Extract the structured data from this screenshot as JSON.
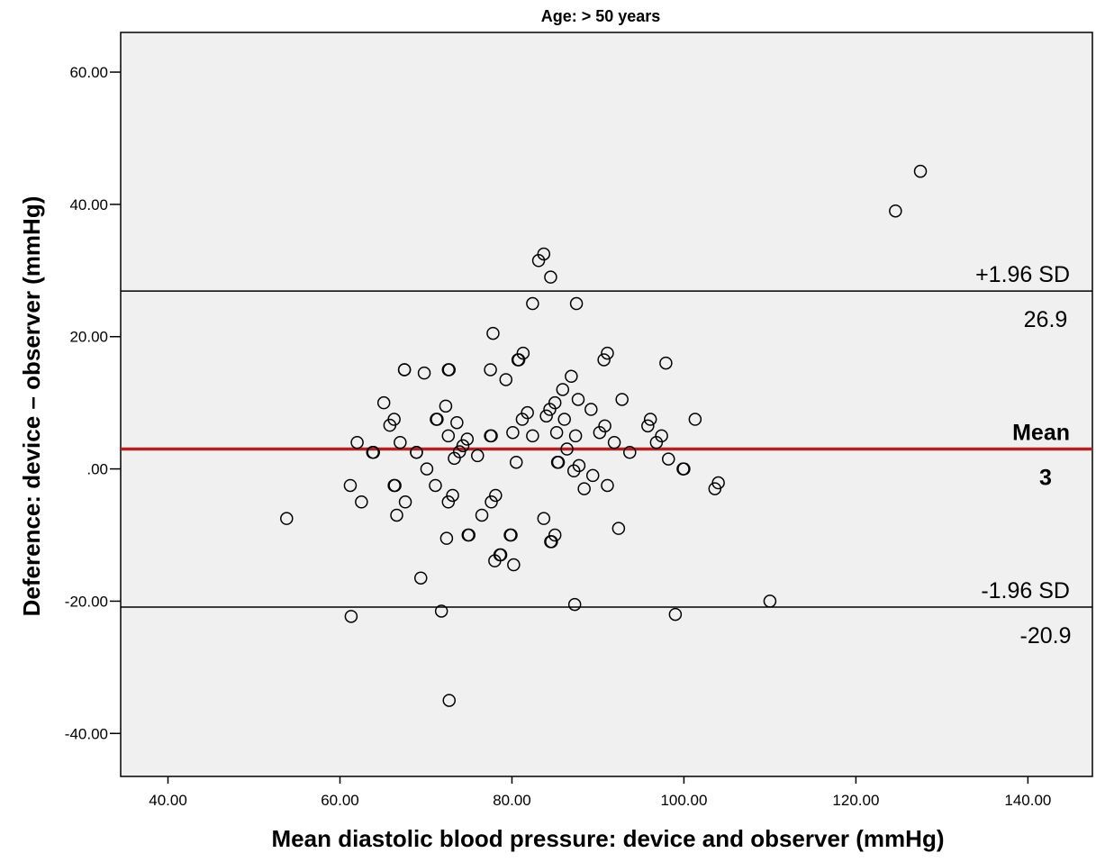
{
  "chart_data": {
    "type": "scatter",
    "title": "Age: > 50 years",
    "xlabel": "Mean diastolic blood pressure: device and observer (mmHg)",
    "ylabel": "Deference: device – observer (mmHg)",
    "xlim": [
      34.5,
      147.5
    ],
    "ylim": [
      -46.5,
      66
    ],
    "x_ticks": [
      40,
      60,
      80,
      100,
      120,
      140
    ],
    "x_tick_labels": [
      "40.00",
      "60.00",
      "80.00",
      "100.00",
      "120.00",
      "140.00"
    ],
    "y_ticks": [
      60,
      40,
      20,
      0,
      -20,
      -40
    ],
    "y_tick_labels": [
      "60.00",
      "40.00",
      "20.00",
      ".00",
      "-20.00",
      "-40.00"
    ],
    "grid": false,
    "plot_background": "#f0f0f0",
    "marker": "open-circle",
    "reference_lines": [
      {
        "name": "+1.96 SD",
        "value": 26.9,
        "value_label": "26.9",
        "color": "#000000",
        "bold": false
      },
      {
        "name": "Mean",
        "value": 3,
        "value_label": "3",
        "color": "#b22222",
        "bold": true
      },
      {
        "name": "-1.96 SD",
        "value": -20.9,
        "value_label": "-20.9",
        "color": "#000000",
        "bold": false
      }
    ],
    "points": [
      [
        53.8,
        -7.5
      ],
      [
        61.2,
        -2.5
      ],
      [
        61.3,
        -22.3
      ],
      [
        62.0,
        4.0
      ],
      [
        62.5,
        -5.0
      ],
      [
        63.8,
        2.5
      ],
      [
        63.9,
        2.5
      ],
      [
        65.1,
        10.0
      ],
      [
        65.8,
        6.6
      ],
      [
        66.3,
        7.5
      ],
      [
        66.3,
        -2.5
      ],
      [
        66.4,
        -2.5
      ],
      [
        66.6,
        -7.0
      ],
      [
        67.0,
        4.0
      ],
      [
        67.5,
        15.0
      ],
      [
        67.6,
        -5.0
      ],
      [
        67.5,
        15.0
      ],
      [
        68.9,
        2.5
      ],
      [
        68.9,
        2.5
      ],
      [
        69.4,
        -16.5
      ],
      [
        69.8,
        14.5
      ],
      [
        70.1,
        0.0
      ],
      [
        71.1,
        -2.5
      ],
      [
        71.2,
        7.5
      ],
      [
        71.3,
        7.5
      ],
      [
        71.8,
        -21.5
      ],
      [
        72.3,
        9.5
      ],
      [
        72.4,
        -10.5
      ],
      [
        72.6,
        5.0
      ],
      [
        72.6,
        15.0
      ],
      [
        72.6,
        -5.0
      ],
      [
        72.7,
        15.0
      ],
      [
        72.7,
        -35.0
      ],
      [
        73.1,
        -4.0
      ],
      [
        73.3,
        1.6
      ],
      [
        73.6,
        7.0
      ],
      [
        73.9,
        2.6
      ],
      [
        74.3,
        3.5
      ],
      [
        74.8,
        4.5
      ],
      [
        74.9,
        -10.0
      ],
      [
        75.0,
        -10.0
      ],
      [
        76.0,
        2.0
      ],
      [
        76.5,
        -7.0
      ],
      [
        77.5,
        15.0
      ],
      [
        77.5,
        5.0
      ],
      [
        77.6,
        -5.0
      ],
      [
        77.6,
        5.0
      ],
      [
        77.8,
        20.5
      ],
      [
        78.0,
        -13.9
      ],
      [
        78.1,
        -4.0
      ],
      [
        78.6,
        -13.0
      ],
      [
        78.7,
        -13.0
      ],
      [
        79.3,
        13.5
      ],
      [
        79.8,
        -10.0
      ],
      [
        79.9,
        -10.0
      ],
      [
        80.1,
        5.5
      ],
      [
        80.2,
        -14.5
      ],
      [
        80.5,
        1.0
      ],
      [
        80.7,
        16.5
      ],
      [
        80.8,
        16.5
      ],
      [
        81.2,
        7.5
      ],
      [
        81.3,
        17.5
      ],
      [
        81.8,
        8.5
      ],
      [
        82.4,
        25.0
      ],
      [
        82.4,
        5.0
      ],
      [
        83.1,
        31.5
      ],
      [
        83.7,
        32.5
      ],
      [
        83.7,
        -7.5
      ],
      [
        84.0,
        8.0
      ],
      [
        84.4,
        9.0
      ],
      [
        84.5,
        29.0
      ],
      [
        84.5,
        -11.0
      ],
      [
        84.6,
        -11.0
      ],
      [
        85.0,
        10.0
      ],
      [
        85.0,
        -10.0
      ],
      [
        85.2,
        5.5
      ],
      [
        85.3,
        1.0
      ],
      [
        85.4,
        1.0
      ],
      [
        85.9,
        12.0
      ],
      [
        86.1,
        7.5
      ],
      [
        86.4,
        3.0
      ],
      [
        86.9,
        14.0
      ],
      [
        87.2,
        -0.3
      ],
      [
        87.3,
        -20.5
      ],
      [
        87.4,
        5.0
      ],
      [
        87.5,
        25.0
      ],
      [
        87.7,
        10.5
      ],
      [
        87.8,
        0.5
      ],
      [
        88.4,
        -3.0
      ],
      [
        89.2,
        9.0
      ],
      [
        89.4,
        -1.0
      ],
      [
        90.2,
        5.5
      ],
      [
        90.7,
        16.5
      ],
      [
        90.8,
        6.5
      ],
      [
        91.1,
        17.5
      ],
      [
        91.1,
        -2.5
      ],
      [
        91.9,
        4.0
      ],
      [
        92.4,
        -9.0
      ],
      [
        92.8,
        10.5
      ],
      [
        93.7,
        2.5
      ],
      [
        95.8,
        6.5
      ],
      [
        96.1,
        7.5
      ],
      [
        96.8,
        4.0
      ],
      [
        97.4,
        5.0
      ],
      [
        97.9,
        16.0
      ],
      [
        98.2,
        1.5
      ],
      [
        99.0,
        -22.0
      ],
      [
        99.9,
        0.0
      ],
      [
        100.0,
        0.0
      ],
      [
        101.3,
        7.5
      ],
      [
        103.6,
        -3.0
      ],
      [
        104.0,
        -2.1
      ],
      [
        110.0,
        -20.0
      ],
      [
        124.6,
        39.0
      ],
      [
        127.5,
        45.0
      ]
    ]
  }
}
